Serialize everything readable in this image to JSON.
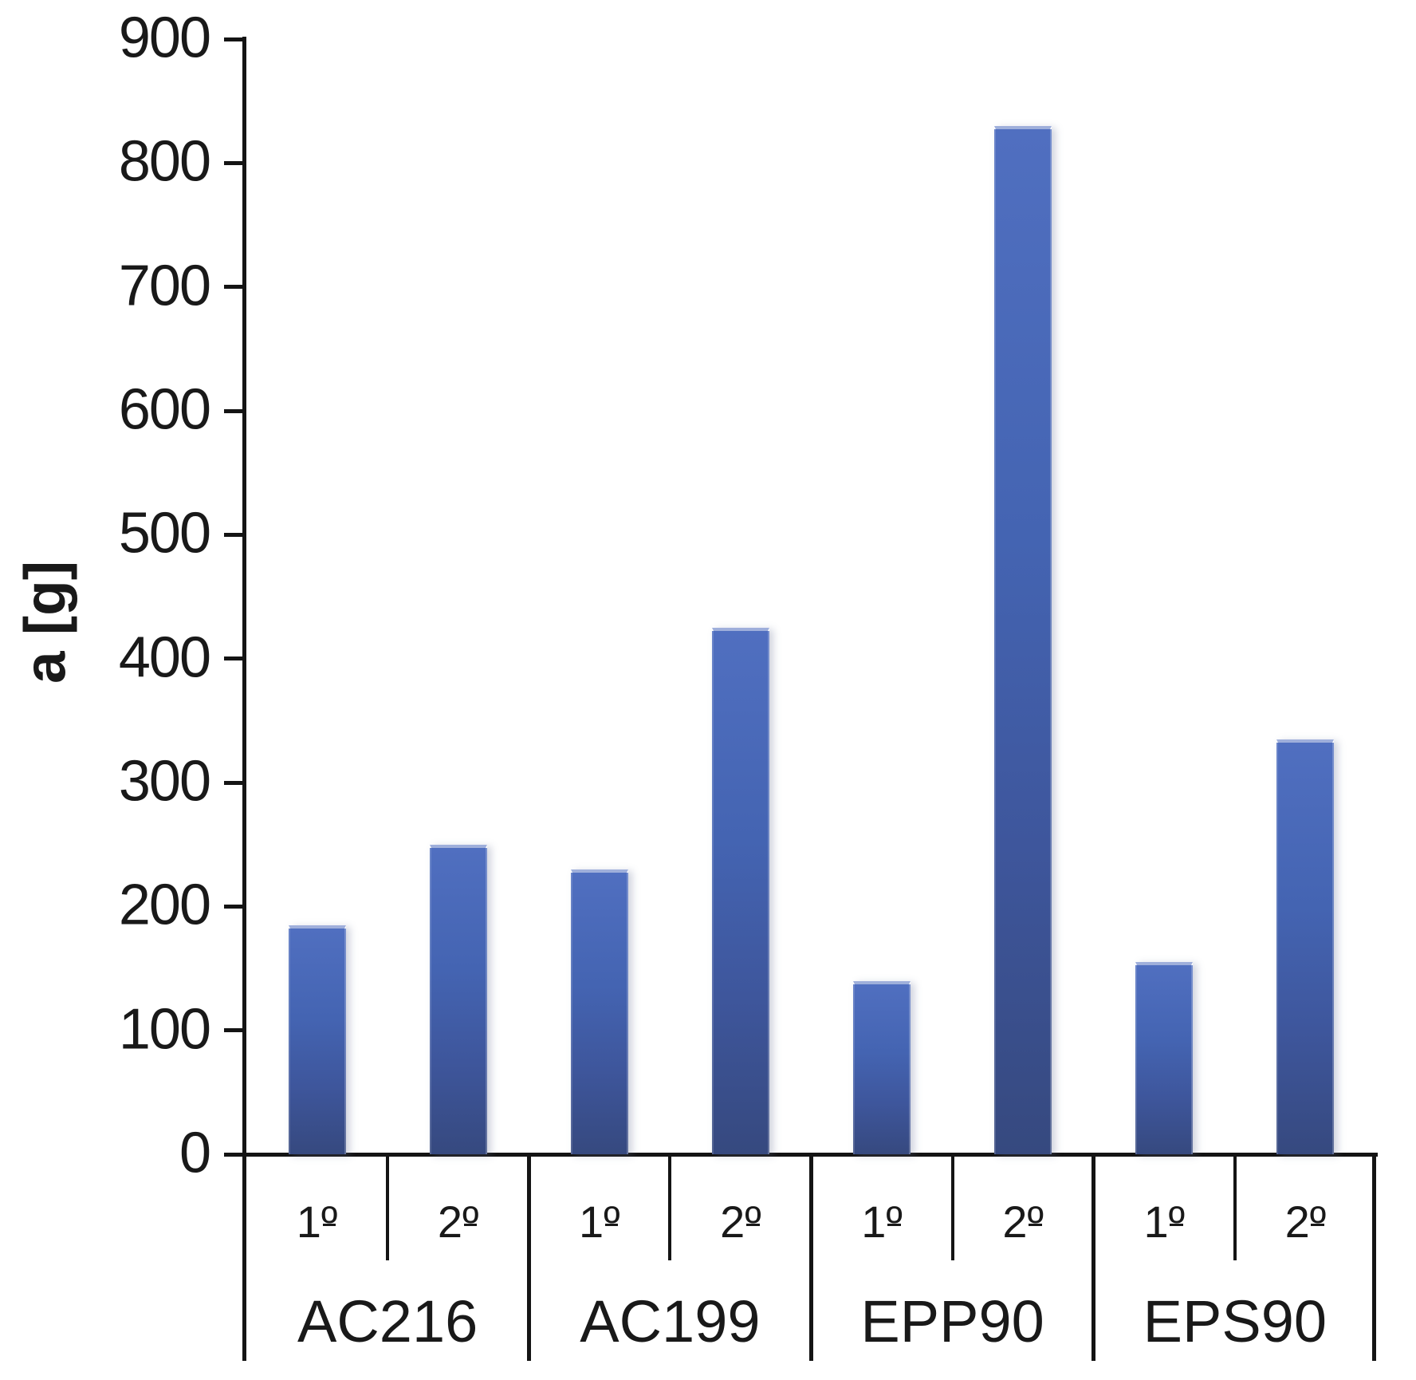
{
  "chart_data": {
    "type": "bar",
    "title": "",
    "ylabel": "a [g]",
    "xlabel": "",
    "ylim": [
      0,
      900
    ],
    "ytick_interval": 100,
    "yticks": [
      0,
      100,
      200,
      300,
      400,
      500,
      600,
      700,
      800,
      900
    ],
    "grid": false,
    "legend": "none",
    "bar_color": "#4565b2",
    "bar_gradient_top": "#506fc0",
    "bar_gradient_bottom": "#36497f",
    "axis_color": "#141414",
    "text_color": "#191919",
    "categories": [
      "AC216",
      "AC199",
      "EPP90",
      "EPS90"
    ],
    "subcategories": [
      "1º",
      "2º"
    ],
    "series": [
      {
        "category": "AC216",
        "sublabels": [
          "1º",
          "2º"
        ],
        "values": [
          185,
          250
        ]
      },
      {
        "category": "AC199",
        "sublabels": [
          "1º",
          "2º"
        ],
        "values": [
          230,
          425
        ]
      },
      {
        "category": "EPP90",
        "sublabels": [
          "1º",
          "2º"
        ],
        "values": [
          140,
          830
        ]
      },
      {
        "category": "EPS90",
        "sublabels": [
          "1º",
          "2º"
        ],
        "values": [
          155,
          335
        ]
      }
    ]
  }
}
